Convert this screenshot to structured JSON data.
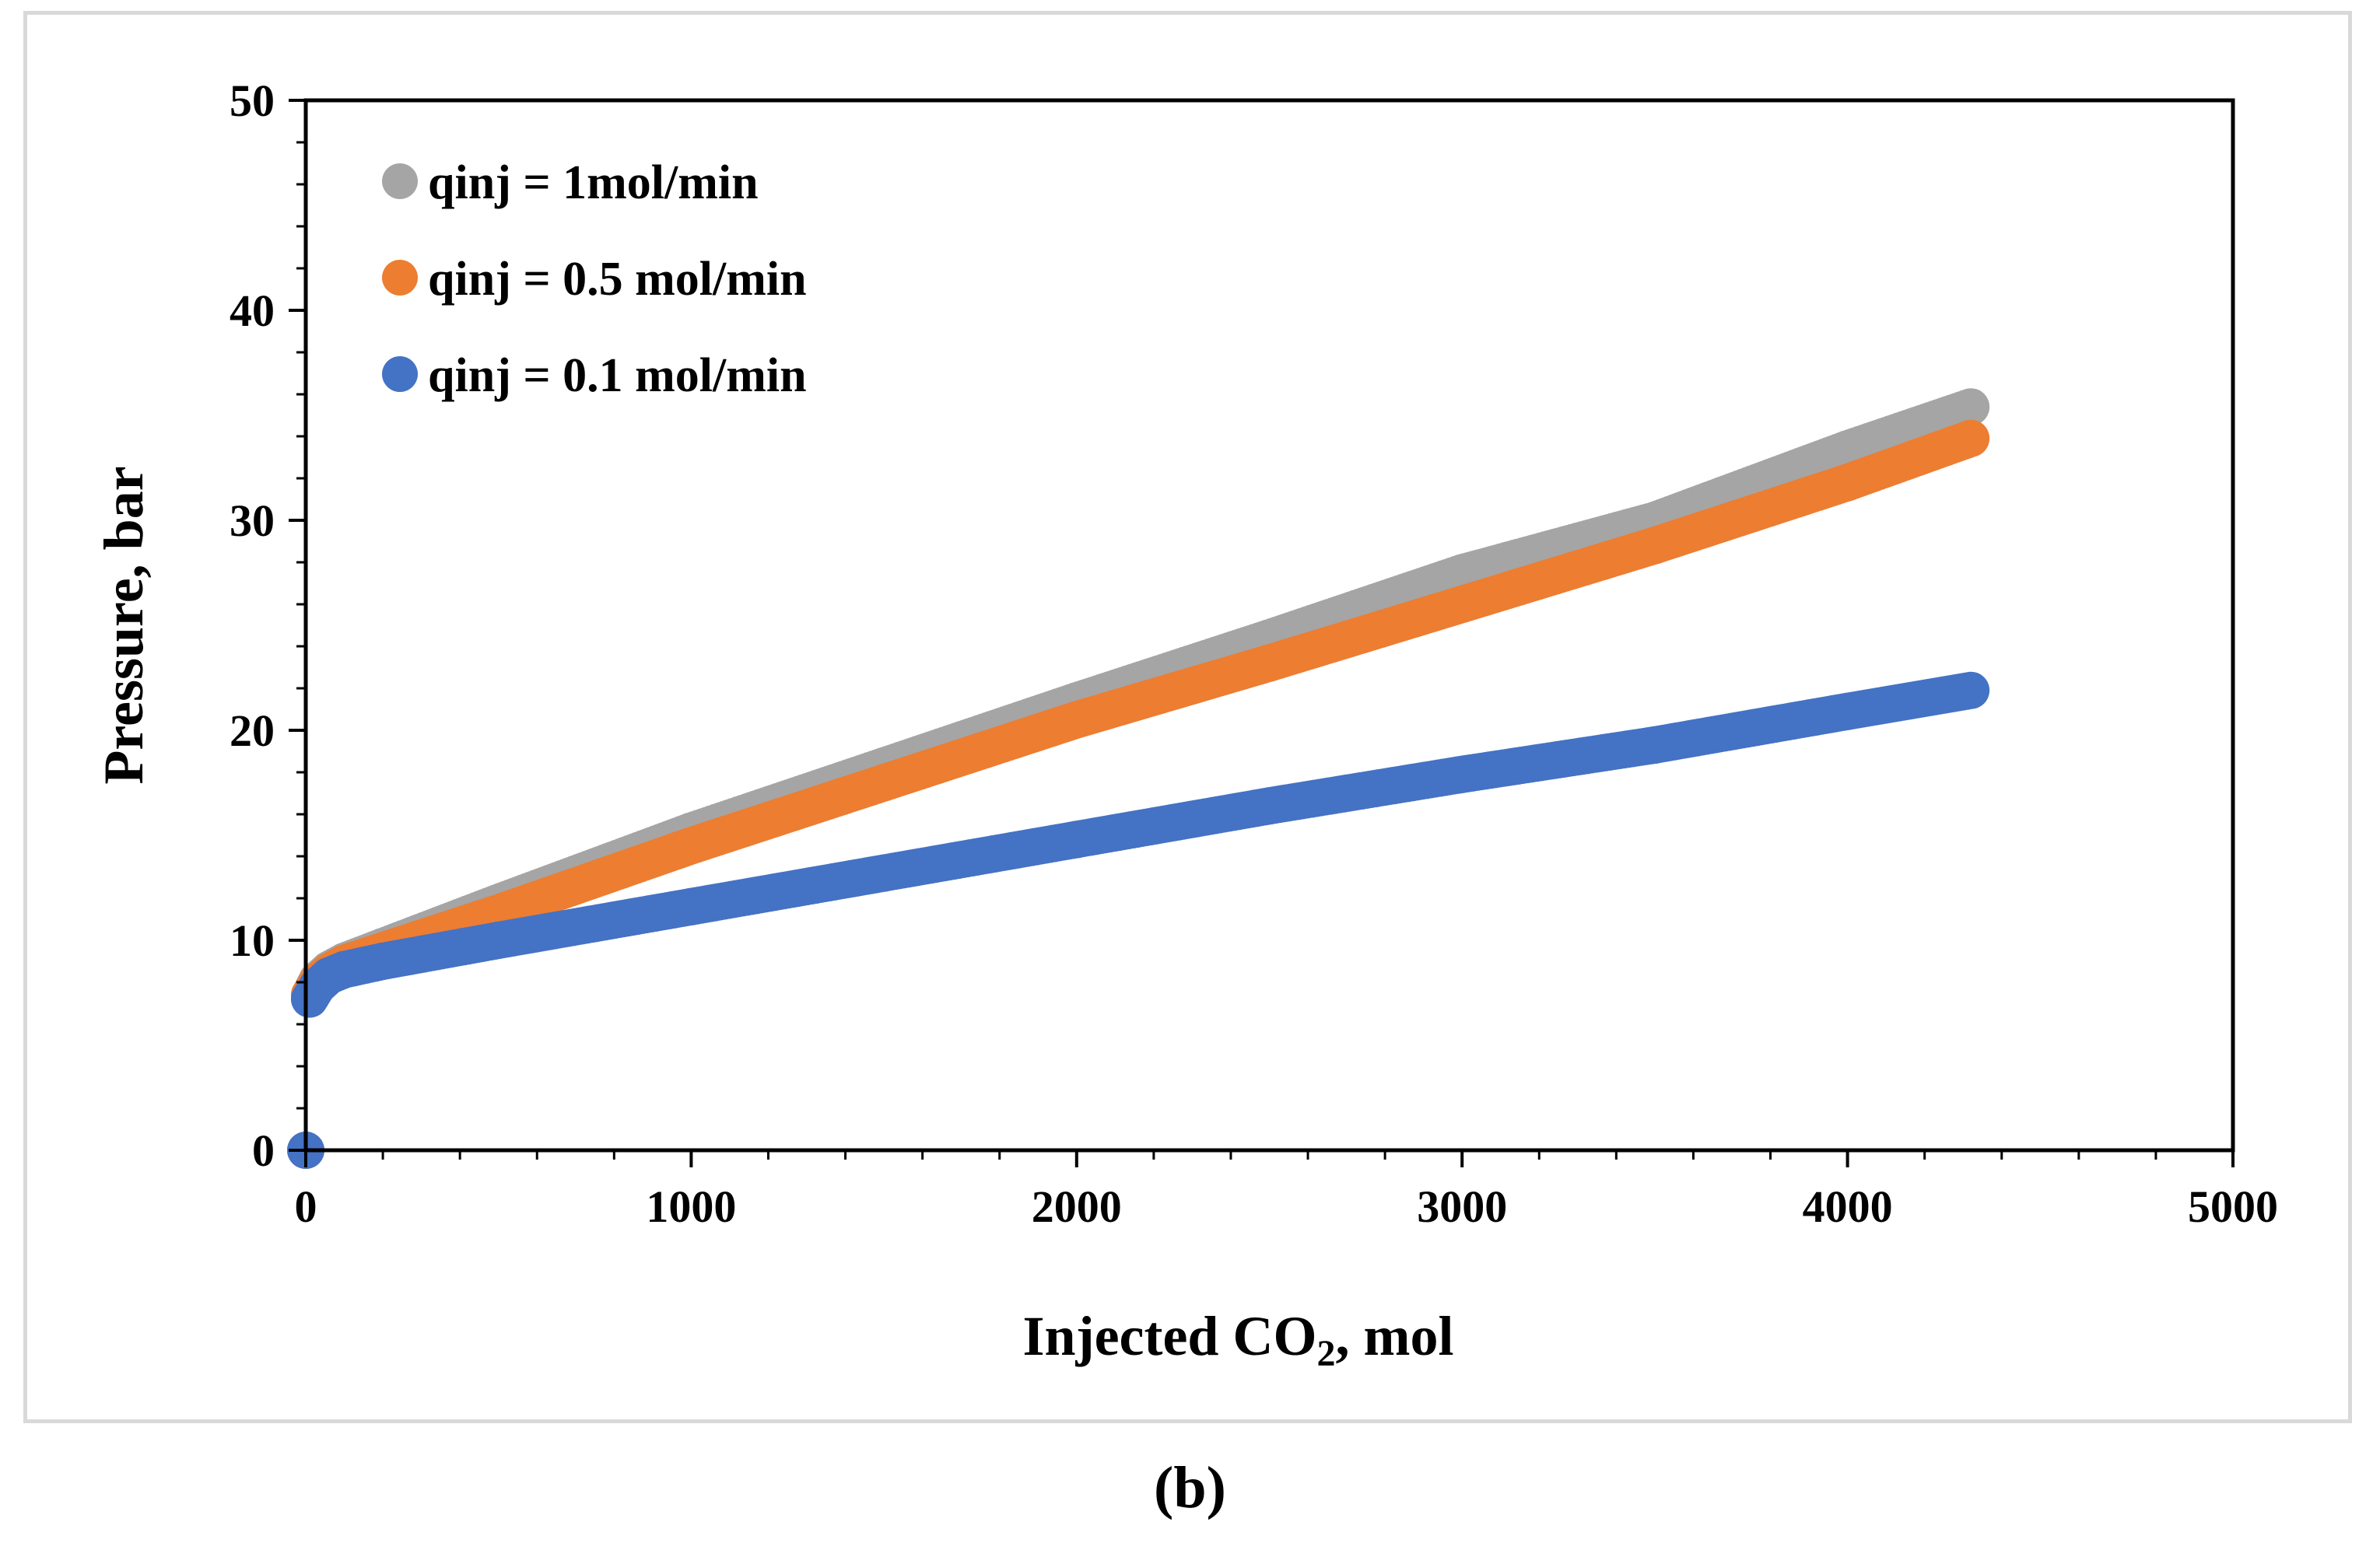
{
  "chart_data": {
    "type": "scatter",
    "xlabel": "Injected CO",
    "xlabel_subscript": "2",
    "xlabel_suffix": ", mol",
    "ylabel": "Pressure, bar",
    "xlim": [
      0,
      5000
    ],
    "ylim": [
      0,
      50
    ],
    "xticks": [
      0,
      1000,
      2000,
      3000,
      4000,
      5000
    ],
    "yticks": [
      0,
      10,
      20,
      30,
      40,
      50
    ],
    "x_minor_step": 200,
    "y_minor_step": 2,
    "grid": false,
    "legend_position": "top-left",
    "series": [
      {
        "name": "qinj = 1mol/min",
        "color": "#a5a5a5",
        "x": [
          0,
          10,
          30,
          60,
          100,
          200,
          500,
          1000,
          1500,
          2000,
          2500,
          3000,
          3500,
          4000,
          4320
        ],
        "y": [
          0,
          7.4,
          8.1,
          8.6,
          9.0,
          9.7,
          11.8,
          15.2,
          18.3,
          21.4,
          24.4,
          27.5,
          30.0,
          33.4,
          35.4
        ]
      },
      {
        "name": "qinj = 0.5 mol/min",
        "color": "#ed7d31",
        "x": [
          0,
          10,
          30,
          60,
          100,
          200,
          500,
          1000,
          1500,
          2000,
          2500,
          3000,
          3500,
          4000,
          4320
        ],
        "y": [
          0,
          7.4,
          8.0,
          8.5,
          8.9,
          9.5,
          11.3,
          14.5,
          17.5,
          20.5,
          23.2,
          26.0,
          28.8,
          31.8,
          33.9
        ]
      },
      {
        "name": "qinj = 0.1 mol/min",
        "color": "#4472c4",
        "x": [
          0,
          10,
          30,
          60,
          100,
          200,
          500,
          1000,
          1500,
          2000,
          2500,
          3000,
          3500,
          4000,
          4320
        ],
        "y": [
          0,
          7.2,
          7.8,
          8.3,
          8.6,
          9.0,
          10.0,
          11.6,
          13.2,
          14.8,
          16.4,
          17.9,
          19.3,
          20.9,
          21.9
        ]
      }
    ]
  },
  "caption": "(b)"
}
